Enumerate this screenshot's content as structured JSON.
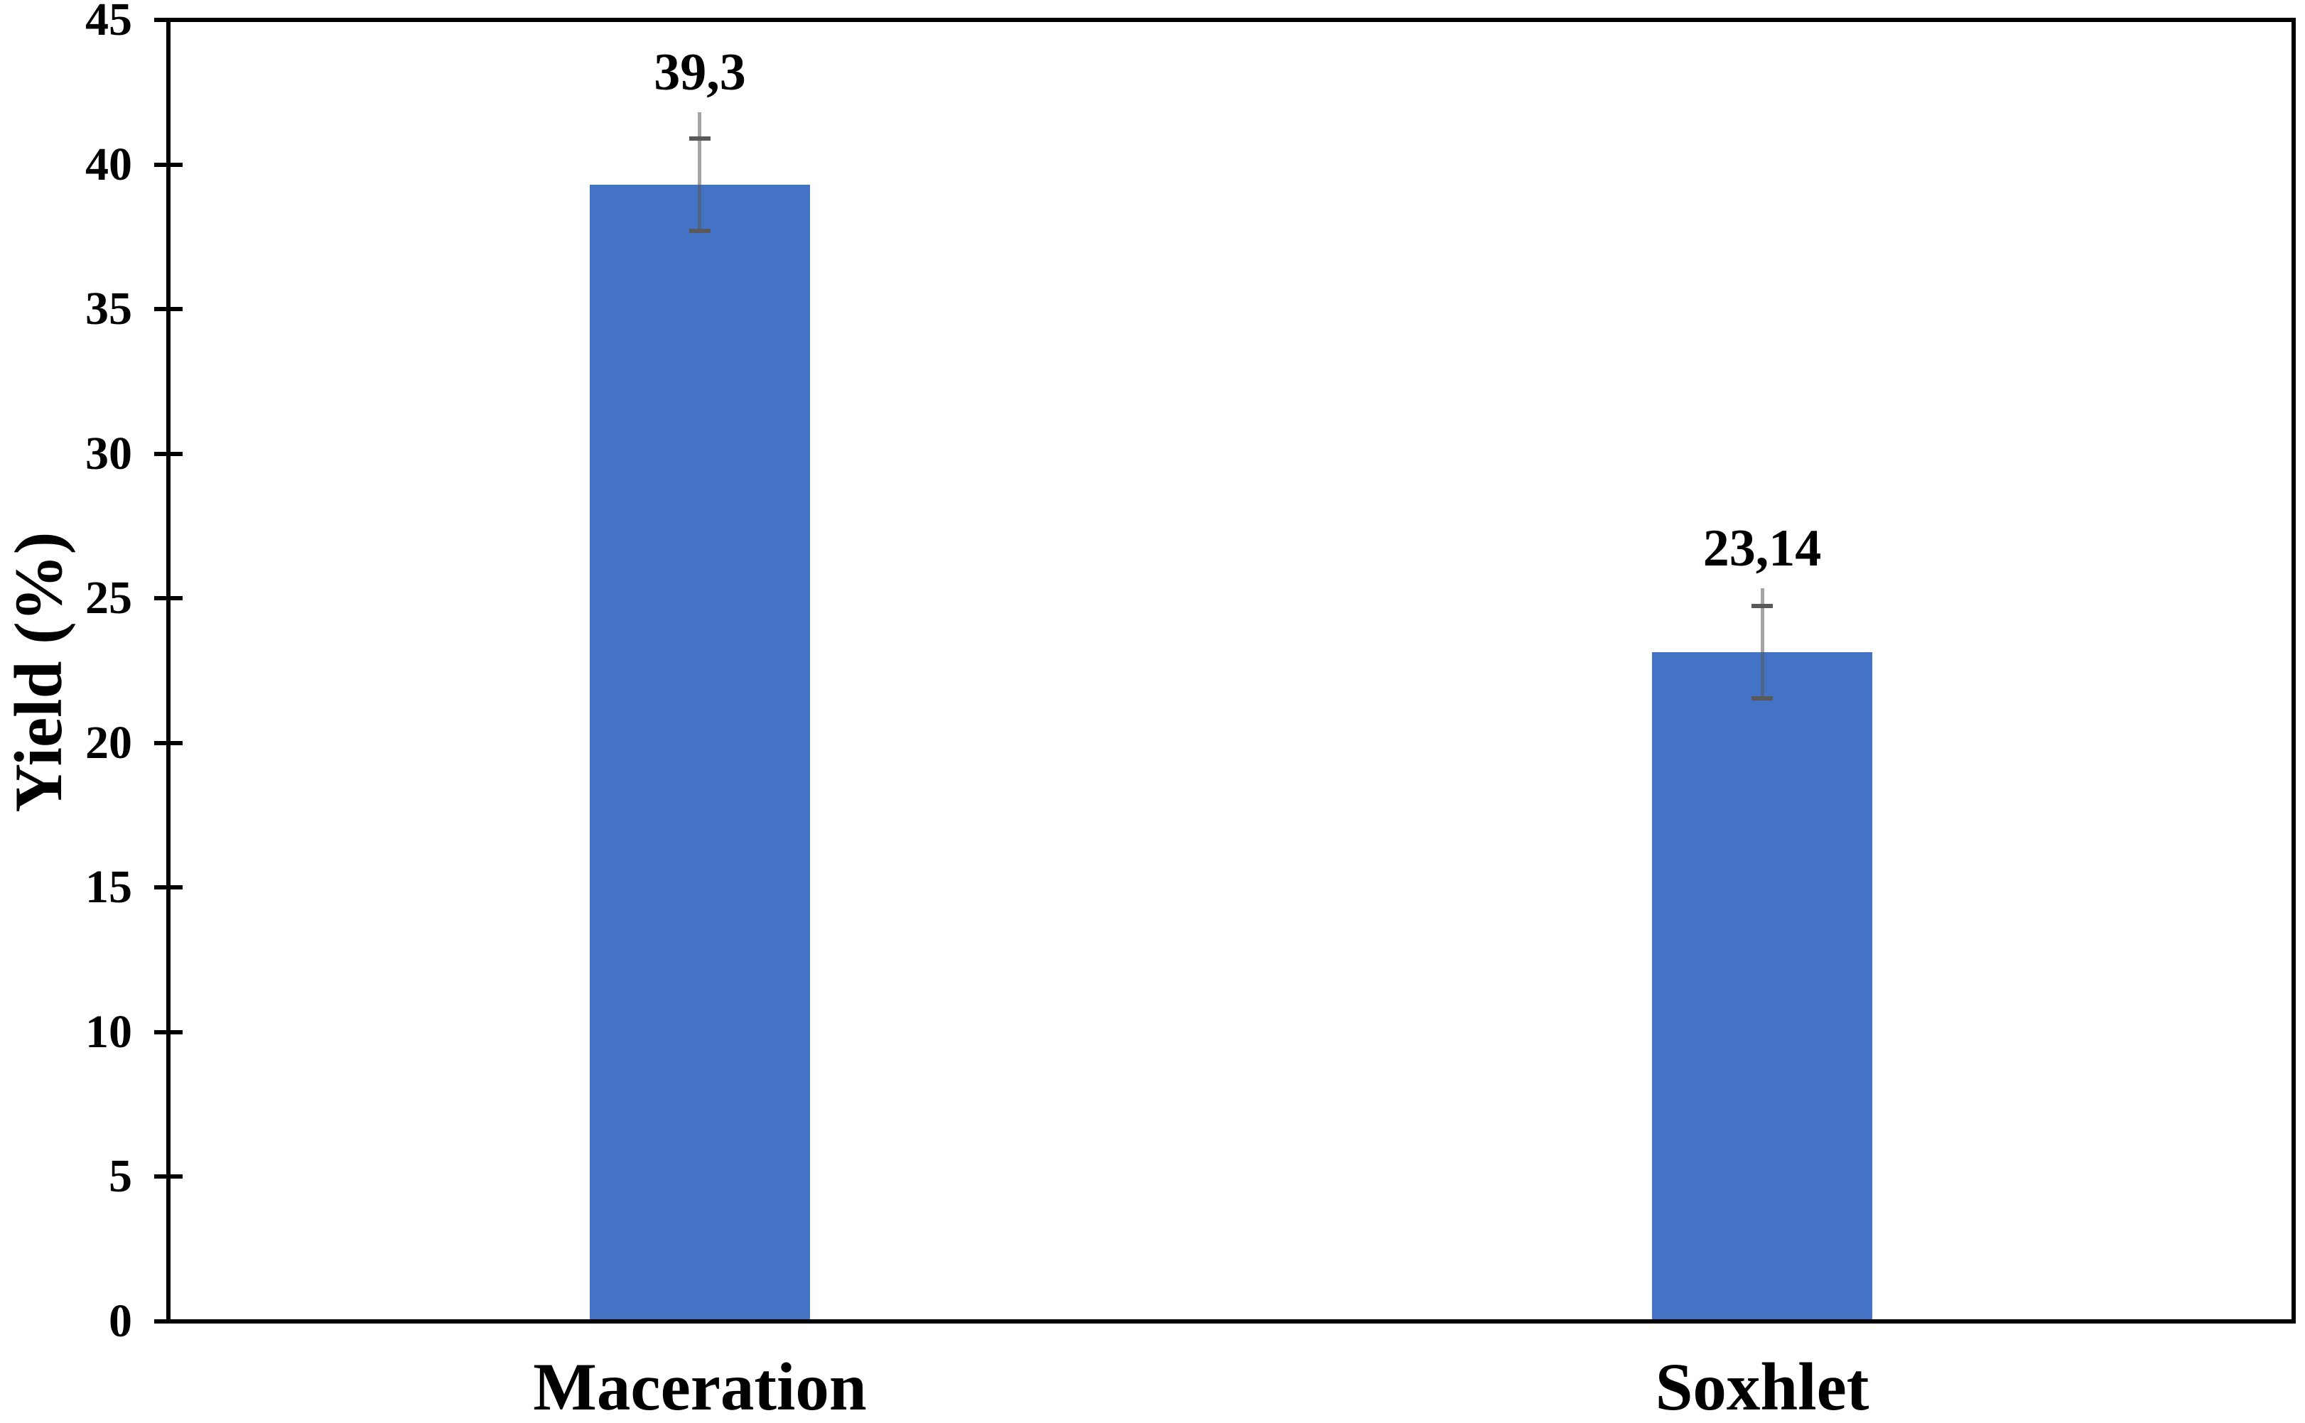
{
  "chart_data": {
    "type": "bar",
    "title": "",
    "categories": [
      "Maceration",
      "Soxhlet"
    ],
    "values": [
      39.3,
      23.14
    ],
    "value_labels": [
      "39,3",
      "23,14"
    ],
    "error_bars": {
      "cap_half_range": [
        1.6,
        1.6
      ],
      "upper_line_extent": [
        2.5,
        2.2
      ]
    },
    "xlabel": "",
    "ylabel": "Yield (%)",
    "ylim": [
      0,
      45
    ],
    "ytick_step": 5,
    "ytick_labels": [
      "0",
      "5",
      "10",
      "15",
      "20",
      "25",
      "30",
      "35",
      "40",
      "45"
    ],
    "grid": false,
    "legend": false,
    "colors": {
      "bar_fill": "#4472C4",
      "axis": "#000000",
      "error_cap": "#595959",
      "error_line": "rgba(89,89,89,0.55)",
      "background": "#FFFFFF",
      "text": "#000000"
    }
  }
}
